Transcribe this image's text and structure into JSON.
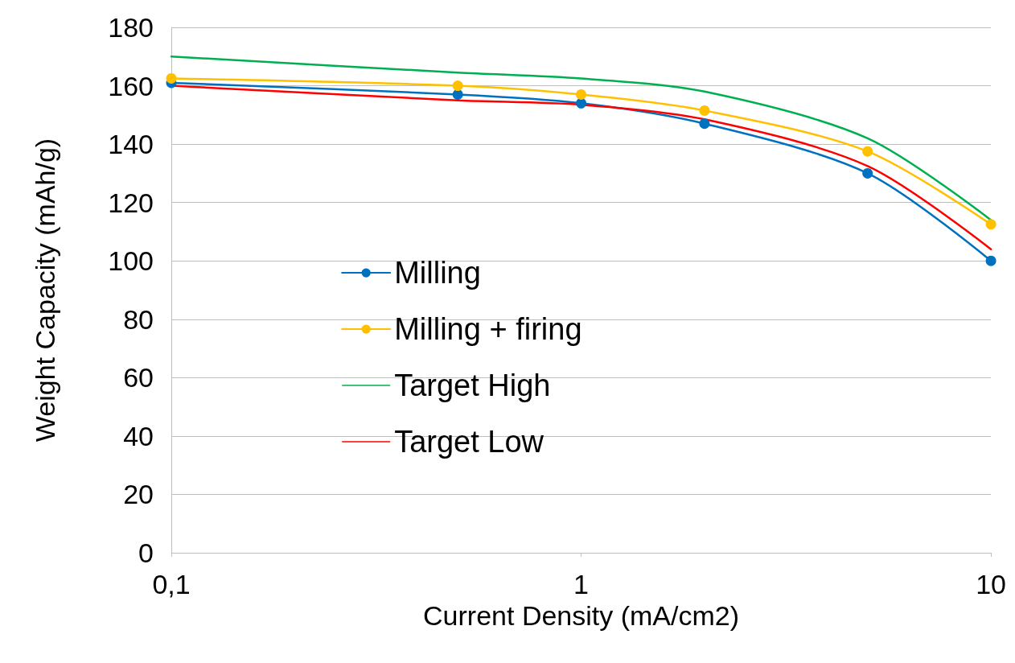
{
  "chart_data": {
    "type": "line",
    "xlabel": "Current Density (mA/cm2)",
    "ylabel": "Weight Capacity (mAh/g)",
    "x": [
      0.1,
      0.5,
      1,
      2,
      5,
      10
    ],
    "series": [
      {
        "name": "Milling",
        "color": "#0070c0",
        "marker": "circle",
        "values": [
          161,
          157,
          154,
          147,
          130,
          100
        ]
      },
      {
        "name": "Milling + firing",
        "color": "#ffc000",
        "marker": "circle",
        "values": [
          162.5,
          160,
          157,
          151.5,
          137.5,
          112.5
        ]
      },
      {
        "name": "Target High",
        "color": "#00b050",
        "marker": "none",
        "values": [
          170,
          164.5,
          162.5,
          158,
          142,
          114
        ]
      },
      {
        "name": "Target Low",
        "color": "#ff0000",
        "marker": "none",
        "values": [
          160,
          155,
          153.5,
          148.5,
          132.5,
          104
        ]
      }
    ],
    "log": "x",
    "xlim": [
      0.1,
      10
    ],
    "xticks": [
      {
        "value": 0.1,
        "label": "0,1"
      },
      1,
      10
    ],
    "ylim": [
      0,
      180
    ],
    "yticks": [
      0,
      20,
      40,
      60,
      80,
      100,
      120,
      140,
      160,
      180
    ],
    "grid": "y",
    "legend": "left",
    "line_style": "solid"
  }
}
